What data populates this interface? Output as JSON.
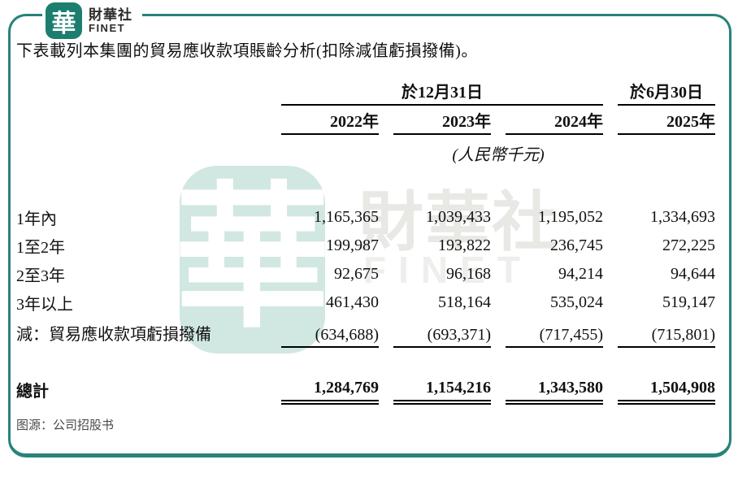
{
  "brand": {
    "logo_char": "華",
    "name_cn": "財華社",
    "name_en": "FINET"
  },
  "title": "下表載列本集團的貿易應收款項賬齡分析(扣除減值虧損撥備)。",
  "table": {
    "group_headers": {
      "dec31": "於12月31日",
      "jun30": "於6月30日"
    },
    "year_headers": [
      "2022年",
      "2023年",
      "2024年",
      "2025年"
    ],
    "unit_note": "(人民幣千元)",
    "rows": [
      {
        "label": "1年內",
        "values": [
          "1,165,365",
          "1,039,433",
          "1,195,052",
          "1,334,693"
        ]
      },
      {
        "label": "1至2年",
        "values": [
          "199,987",
          "193,822",
          "236,745",
          "272,225"
        ]
      },
      {
        "label": "2至3年",
        "values": [
          "92,675",
          "96,168",
          "94,214",
          "94,644"
        ]
      },
      {
        "label": "3年以上",
        "values": [
          "461,430",
          "518,164",
          "535,024",
          "519,147"
        ]
      },
      {
        "label": "減：貿易應收款項虧損撥備",
        "values": [
          "(634,688)",
          "(693,371)",
          "(717,455)",
          "(715,801)"
        ]
      }
    ],
    "total_row": {
      "label": "總計",
      "values": [
        "1,284,769",
        "1,154,216",
        "1,343,580",
        "1,504,908"
      ]
    }
  },
  "watermark": {
    "seal_char": "華",
    "text_cn": "財華社",
    "text_en": "FINET"
  },
  "source_note": "图源：公司招股书",
  "colors": {
    "brand_teal": "#1d7e6f",
    "frame_teal": "#27837a",
    "watermark_seal": "#d1e7e2",
    "watermark_text": "#e8e9e5",
    "text_black": "#111111",
    "source_gray": "#4a4a4a"
  }
}
